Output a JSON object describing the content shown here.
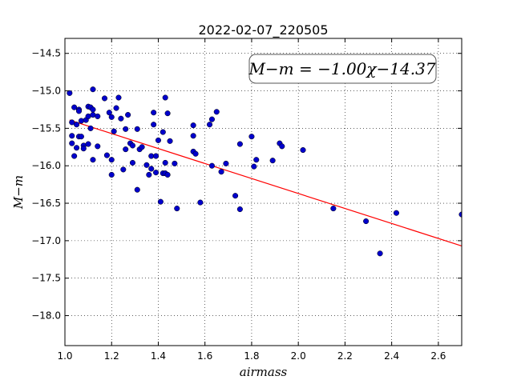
{
  "chart_data": {
    "type": "scatter",
    "title": "2022-02-07_220505",
    "xlabel": "airmass",
    "ylabel": "M−m",
    "xlim": [
      1.0,
      2.7
    ],
    "ylim": [
      -18.4,
      -14.3
    ],
    "y_inverted": false,
    "x_ticks": [
      1.0,
      1.2,
      1.4,
      1.6,
      1.8,
      2.0,
      2.2,
      2.4,
      2.6
    ],
    "x_tick_labels": [
      "1.0",
      "1.2",
      "1.4",
      "1.6",
      "1.8",
      "2.0",
      "2.2",
      "2.4",
      "2.6"
    ],
    "y_ticks": [
      -14.5,
      -15.0,
      -15.5,
      -16.0,
      -16.5,
      -17.0,
      -17.5,
      -18.0
    ],
    "y_tick_labels": [
      "−14.5",
      "−15.0",
      "−15.5",
      "−16.0",
      "−16.5",
      "−17.0",
      "−17.5",
      "−18.0"
    ],
    "grid": true,
    "annotation": "M−m = −1.00χ−14.37",
    "fit": {
      "slope": -1.0,
      "intercept": -14.37,
      "x_range": [
        1.02,
        2.7
      ],
      "color": "#ff0000"
    },
    "point_color": "#0000cc",
    "points": [
      [
        1.02,
        -15.03
      ],
      [
        1.03,
        -15.42
      ],
      [
        1.03,
        -15.6
      ],
      [
        1.03,
        -15.7
      ],
      [
        1.04,
        -15.87
      ],
      [
        1.04,
        -15.22
      ],
      [
        1.05,
        -15.45
      ],
      [
        1.05,
        -15.76
      ],
      [
        1.06,
        -15.25
      ],
      [
        1.06,
        -15.27
      ],
      [
        1.06,
        -15.61
      ],
      [
        1.07,
        -15.4
      ],
      [
        1.07,
        -15.61
      ],
      [
        1.08,
        -15.73
      ],
      [
        1.08,
        -15.77
      ],
      [
        1.09,
        -15.39
      ],
      [
        1.1,
        -15.34
      ],
      [
        1.1,
        -15.71
      ],
      [
        1.1,
        -15.21
      ],
      [
        1.11,
        -15.22
      ],
      [
        1.11,
        -15.5
      ],
      [
        1.12,
        -15.25
      ],
      [
        1.12,
        -15.32
      ],
      [
        1.12,
        -15.92
      ],
      [
        1.12,
        -14.98
      ],
      [
        1.14,
        -15.34
      ],
      [
        1.14,
        -15.74
      ],
      [
        1.17,
        -15.1
      ],
      [
        1.18,
        -15.86
      ],
      [
        1.19,
        -15.29
      ],
      [
        1.2,
        -15.35
      ],
      [
        1.2,
        -15.92
      ],
      [
        1.2,
        -16.12
      ],
      [
        1.21,
        -15.54
      ],
      [
        1.22,
        -15.23
      ],
      [
        1.23,
        -15.09
      ],
      [
        1.24,
        -15.37
      ],
      [
        1.25,
        -16.05
      ],
      [
        1.26,
        -15.51
      ],
      [
        1.26,
        -15.78
      ],
      [
        1.27,
        -15.32
      ],
      [
        1.28,
        -15.7
      ],
      [
        1.29,
        -15.73
      ],
      [
        1.29,
        -15.96
      ],
      [
        1.31,
        -15.51
      ],
      [
        1.31,
        -16.32
      ],
      [
        1.32,
        -15.78
      ],
      [
        1.33,
        -15.75
      ],
      [
        1.35,
        -15.99
      ],
      [
        1.36,
        -16.12
      ],
      [
        1.37,
        -16.04
      ],
      [
        1.37,
        -15.87
      ],
      [
        1.38,
        -15.29
      ],
      [
        1.38,
        -15.45
      ],
      [
        1.39,
        -16.09
      ],
      [
        1.39,
        -15.87
      ],
      [
        1.4,
        -15.66
      ],
      [
        1.41,
        -16.48
      ],
      [
        1.42,
        -15.55
      ],
      [
        1.42,
        -16.1
      ],
      [
        1.43,
        -15.09
      ],
      [
        1.43,
        -15.96
      ],
      [
        1.43,
        -16.1
      ],
      [
        1.44,
        -15.3
      ],
      [
        1.44,
        -16.12
      ],
      [
        1.45,
        -15.67
      ],
      [
        1.47,
        -15.97
      ],
      [
        1.48,
        -16.57
      ],
      [
        1.55,
        -15.6
      ],
      [
        1.55,
        -15.81
      ],
      [
        1.55,
        -15.46
      ],
      [
        1.56,
        -15.84
      ],
      [
        1.58,
        -16.49
      ],
      [
        1.62,
        -15.45
      ],
      [
        1.63,
        -15.38
      ],
      [
        1.63,
        -16.0
      ],
      [
        1.65,
        -15.28
      ],
      [
        1.67,
        -16.08
      ],
      [
        1.69,
        -15.97
      ],
      [
        1.73,
        -16.4
      ],
      [
        1.75,
        -16.58
      ],
      [
        1.75,
        -15.71
      ],
      [
        1.8,
        -15.61
      ],
      [
        1.81,
        -16.01
      ],
      [
        1.82,
        -15.92
      ],
      [
        1.89,
        -15.93
      ],
      [
        1.92,
        -15.7
      ],
      [
        1.93,
        -15.74
      ],
      [
        2.02,
        -15.79
      ],
      [
        2.15,
        -16.57
      ],
      [
        2.29,
        -16.74
      ],
      [
        2.35,
        -17.17
      ],
      [
        2.42,
        -16.63
      ],
      [
        2.7,
        -16.65
      ]
    ]
  }
}
